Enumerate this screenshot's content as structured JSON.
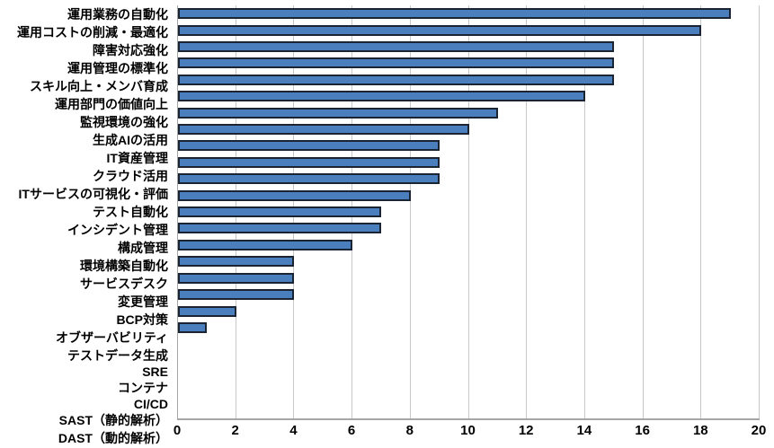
{
  "chart_data": {
    "type": "bar",
    "orientation": "horizontal",
    "title": "",
    "categories": [
      "運用業務の自動化",
      "運用コストの削減・最適化",
      "障害対応強化",
      "運用管理の標準化",
      "スキル向上・メンバ育成",
      "運用部門の価値向上",
      "監視環境の強化",
      "生成AIの活用",
      "IT資産管理",
      "クラウド活用",
      "ITサービスの可視化・評価",
      "テスト自動化",
      "インシデント管理",
      "構成管理",
      "環境構築自動化",
      "サービスデスク",
      "変更管理",
      "BCP対策",
      "オブザーバビリティ",
      "テストデータ生成",
      "SRE",
      "コンテナ",
      "CI/CD",
      "SAST（静的解析）",
      "DAST（動的解析）"
    ],
    "values": [
      19,
      18,
      15,
      15,
      15,
      14,
      11,
      10,
      9,
      9,
      9,
      8,
      7,
      7,
      6,
      4,
      4,
      4,
      2,
      1,
      0,
      0,
      0,
      0,
      0
    ],
    "xlabel": "",
    "ylabel": "",
    "xlim": [
      0,
      20
    ],
    "xticks": [
      0,
      2,
      4,
      6,
      8,
      10,
      12,
      14,
      16,
      18,
      20
    ],
    "grid": "vertical-major",
    "legend": "none",
    "colors": {
      "bar_fill": "#4A7EBD",
      "bar_border": "#1A2433",
      "gridline": "#C9C9C9",
      "axis_line": "#A6A6A6",
      "text": "#000000",
      "background": "#FFFFFF"
    }
  }
}
